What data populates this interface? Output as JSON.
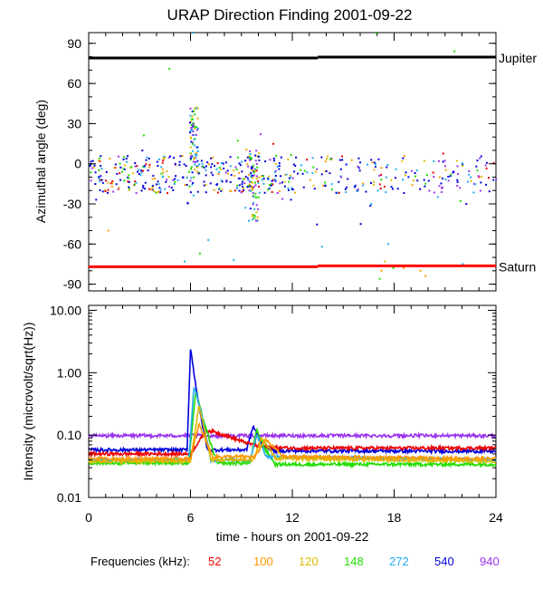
{
  "chart_data": {
    "title": "URAP Direction Finding  2001-09-22",
    "xlabel": "time - hours on 2001-09-22",
    "xlim": [
      0,
      24
    ],
    "xticks": [
      "0",
      "6",
      "12",
      "18",
      "24"
    ],
    "legend_label": "Frequencies (kHz):",
    "frequencies": [
      {
        "name": "52",
        "color": "#ee0000"
      },
      {
        "name": "100",
        "color": "#ff9900"
      },
      {
        "name": "120",
        "color": "#ddbb00"
      },
      {
        "name": "148",
        "color": "#22dd00"
      },
      {
        "name": "272",
        "color": "#22aaee"
      },
      {
        "name": "540",
        "color": "#0000dd"
      },
      {
        "name": "940",
        "color": "#9933ee"
      }
    ],
    "panels": [
      {
        "type": "scatter",
        "ylabel": "Azimuthal angle (deg)",
        "ylim": [
          -95,
          98
        ],
        "yticks": [
          90,
          60,
          30,
          0,
          -30,
          -60,
          -90
        ],
        "ytick_labels": [
          "90",
          "60",
          "30",
          "0",
          "-30",
          "-60",
          "-90"
        ],
        "references": [
          {
            "name": "Jupiter",
            "value": 79,
            "color": "#000000"
          },
          {
            "name": "Saturn",
            "value": -77,
            "color": "#ff0000"
          }
        ],
        "events": [
          {
            "name": "burst-6h",
            "x": [
              5.9,
              6.4
            ],
            "y": [
              -5,
              45
            ]
          },
          {
            "name": "burst-9.5h",
            "x": [
              9.3,
              10.0
            ],
            "y": [
              -45,
              10
            ]
          }
        ]
      },
      {
        "type": "line",
        "ylabel": "Intensity (microvolt/sqrt(Hz))",
        "yscale": "log",
        "ylim": [
          0.01,
          12
        ],
        "yticks": [
          10,
          1,
          0.1,
          0.01
        ],
        "ytick_labels": [
          "10.00",
          "1.00",
          "0.10",
          "0.01"
        ],
        "series": [
          {
            "name": "940",
            "x": [
              0,
              6,
              6.1,
              6.4,
              7,
              24
            ],
            "y": [
              0.098,
              0.098,
              0.1,
              0.099,
              0.098,
              0.098
            ]
          },
          {
            "name": "540",
            "x": [
              0,
              5.8,
              6.0,
              6.2,
              6.6,
              7,
              9.3,
              9.7,
              10.2,
              11,
              24
            ],
            "y": [
              0.058,
              0.058,
              2.5,
              1.0,
              0.2,
              0.058,
              0.058,
              0.14,
              0.07,
              0.056,
              0.055
            ]
          },
          {
            "name": "52",
            "x": [
              0,
              6,
              6.5,
              7,
              7.5,
              8,
              9,
              10,
              12,
              24
            ],
            "y": [
              0.05,
              0.05,
              0.08,
              0.12,
              0.11,
              0.1,
              0.08,
              0.066,
              0.062,
              0.062
            ]
          },
          {
            "name": "148",
            "x": [
              0,
              5.9,
              6.3,
              6.7,
              7.2,
              7.6,
              9.5,
              9.9,
              10.4,
              11,
              24
            ],
            "y": [
              0.036,
              0.036,
              0.5,
              0.2,
              0.07,
              0.035,
              0.036,
              0.12,
              0.06,
              0.034,
              0.034
            ]
          },
          {
            "name": "272",
            "x": [
              0,
              5.9,
              6.2,
              6.6,
              7.2,
              9.5,
              9.9,
              10.5,
              24
            ],
            "y": [
              0.04,
              0.04,
              0.6,
              0.25,
              0.04,
              0.04,
              0.1,
              0.045,
              0.04
            ]
          },
          {
            "name": "120",
            "x": [
              0,
              6,
              6.5,
              7.2,
              9.7,
              10.2,
              11,
              24
            ],
            "y": [
              0.038,
              0.038,
              0.3,
              0.04,
              0.04,
              0.09,
              0.042,
              0.038
            ]
          },
          {
            "name": "100",
            "x": [
              0,
              6,
              6.5,
              7.3,
              9.8,
              10.4,
              11.5,
              24
            ],
            "y": [
              0.042,
              0.042,
              0.15,
              0.045,
              0.045,
              0.085,
              0.045,
              0.042
            ]
          }
        ]
      }
    ]
  }
}
